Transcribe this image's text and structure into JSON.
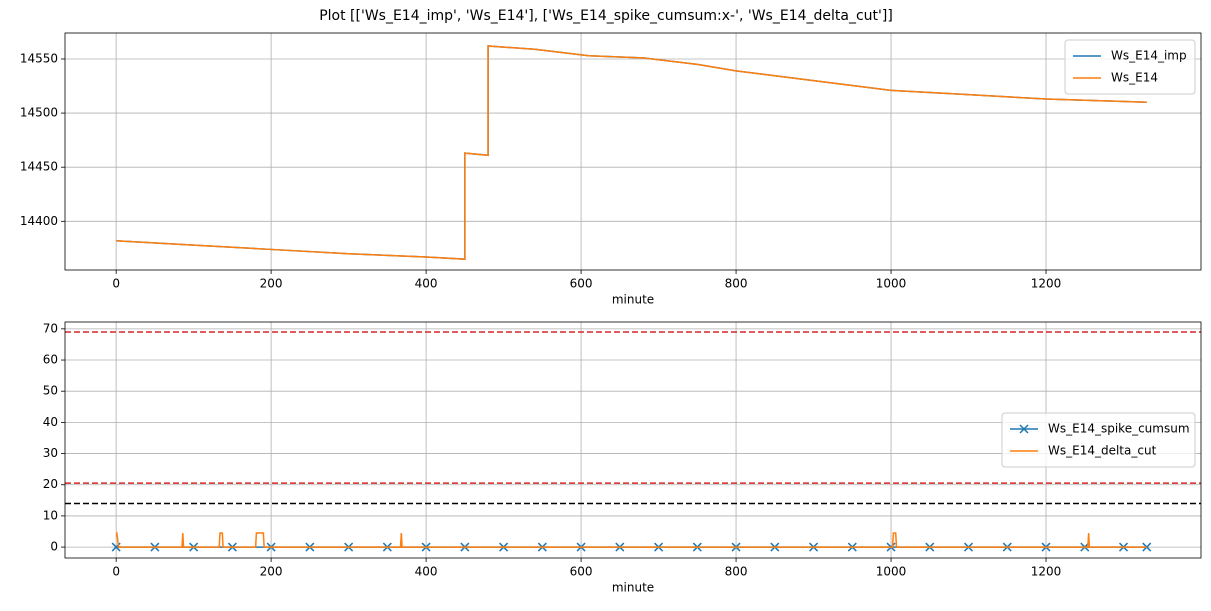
{
  "title": "Plot [['Ws_E14_imp', 'Ws_E14'], ['Ws_E14_spike_cumsum:x-', 'Ws_E14_delta_cut']]",
  "chart_data": [
    {
      "type": "line",
      "x_label": "minute",
      "xlim": [
        -66,
        1400
      ],
      "ylim": [
        14355,
        14574
      ],
      "xticks": [
        0,
        200,
        400,
        600,
        800,
        1000,
        1200
      ],
      "yticks": [
        14400,
        14450,
        14500,
        14550
      ],
      "grid": true,
      "legend": "upper right",
      "series": [
        {
          "name": "Ws_E14_imp",
          "color": "#1f77b4",
          "marker": null,
          "x": [
            0,
            100,
            200,
            300,
            400,
            450,
            450,
            480,
            480,
            540,
            610,
            680,
            750,
            800,
            900,
            1000,
            1100,
            1200,
            1330
          ],
          "values": [
            14382,
            14378,
            14374,
            14370,
            14367,
            14365,
            14463,
            14461,
            14562,
            14559,
            14553,
            14551,
            14545,
            14539,
            14530,
            14521,
            14517,
            14513,
            14510
          ]
        },
        {
          "name": "Ws_E14",
          "color": "#ff7f0e",
          "marker": null,
          "x": [
            0,
            100,
            200,
            300,
            400,
            450,
            450,
            480,
            480,
            540,
            610,
            680,
            750,
            800,
            900,
            1000,
            1100,
            1200,
            1330
          ],
          "values": [
            14382,
            14378,
            14374,
            14370,
            14367,
            14365,
            14463,
            14461,
            14562,
            14559,
            14553,
            14551,
            14545,
            14539,
            14530,
            14521,
            14517,
            14513,
            14510
          ]
        }
      ]
    },
    {
      "type": "line",
      "x_label": "minute",
      "xlim": [
        -66,
        1400
      ],
      "ylim": [
        -3.5,
        72.2
      ],
      "xticks": [
        0,
        200,
        400,
        600,
        800,
        1000,
        1200
      ],
      "yticks": [
        0,
        10,
        20,
        30,
        40,
        50,
        60,
        70
      ],
      "grid": true,
      "legend": "center right",
      "hlines": [
        {
          "value": 69,
          "color": "#d62728"
        },
        {
          "value": 20.5,
          "color": "#d62728"
        },
        {
          "value": 14,
          "color": "#000000"
        }
      ],
      "series": [
        {
          "name": "Ws_E14_spike_cumsum",
          "color": "#1f77b4",
          "marker": "x",
          "x": [
            0,
            50,
            100,
            150,
            200,
            250,
            300,
            350,
            400,
            450,
            500,
            550,
            600,
            650,
            700,
            750,
            800,
            850,
            900,
            950,
            1000,
            1050,
            1100,
            1150,
            1200,
            1250,
            1300,
            1330
          ],
          "values": [
            0,
            0,
            0,
            0,
            0,
            0,
            0,
            0,
            0,
            0,
            0,
            0,
            0,
            0,
            0,
            0,
            0,
            0,
            0,
            0,
            0,
            0,
            0,
            0,
            0,
            0,
            0,
            0
          ]
        },
        {
          "name": "Ws_E14_delta_cut",
          "color": "#ff7f0e",
          "marker": null,
          "x": [
            0,
            1,
            3,
            85,
            86,
            87,
            133,
            134,
            137,
            138,
            180,
            181,
            190,
            191,
            367,
            368,
            369,
            1002,
            1003,
            1006,
            1007,
            1254,
            1255,
            1256,
            1330
          ],
          "values": [
            4.5,
            4.5,
            0,
            0,
            4.5,
            0,
            0,
            4.5,
            4.5,
            0,
            0,
            4.5,
            4.5,
            0,
            0,
            4.5,
            0,
            0,
            4.5,
            4.5,
            0,
            0,
            4.5,
            0,
            0
          ]
        }
      ]
    }
  ]
}
